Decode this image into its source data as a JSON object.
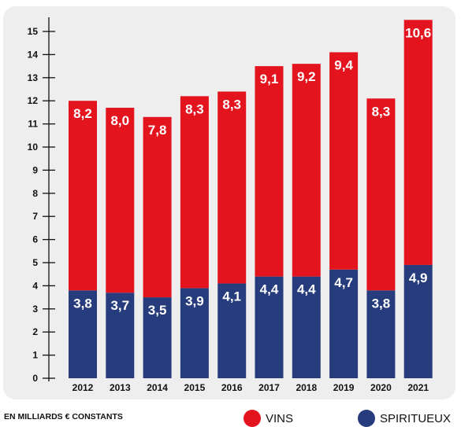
{
  "colors": {
    "vins": "#e3141e",
    "spiritueux": "#273c7c",
    "panel": "#eeeeee",
    "axis": "#111111"
  },
  "note": "EN MILLIARDS € CONSTANTS",
  "legend": [
    {
      "label": "VINS",
      "color": "#e3141e"
    },
    {
      "label": "SPIRITUEUX",
      "color": "#273c7c"
    }
  ],
  "chart_data": {
    "type": "bar",
    "stacked": true,
    "categories": [
      "2012",
      "2013",
      "2014",
      "2015",
      "2016",
      "2017",
      "2018",
      "2019",
      "2020",
      "2021"
    ],
    "series": [
      {
        "name": "SPIRITUEUX",
        "values": [
          3.8,
          3.7,
          3.5,
          3.9,
          4.1,
          4.4,
          4.4,
          4.7,
          3.8,
          4.9
        ],
        "labels": [
          "3,8",
          "3,7",
          "3,5",
          "3,9",
          "4,1",
          "4,4",
          "4,4",
          "4,7",
          "3,8",
          "4,9"
        ]
      },
      {
        "name": "VINS",
        "values": [
          8.2,
          8.0,
          7.8,
          8.3,
          8.3,
          9.1,
          9.2,
          9.4,
          8.3,
          10.6
        ],
        "labels": [
          "8,2",
          "8,0",
          "7,8",
          "8,3",
          "8,3",
          "9,1",
          "9,2",
          "9,4",
          "8,3",
          "10,6"
        ]
      }
    ],
    "ylim": [
      0,
      15
    ],
    "yticks": [
      "0",
      "1",
      "2",
      "3",
      "4",
      "5",
      "6",
      "7",
      "8",
      "9",
      "10",
      "11",
      "12",
      "13",
      "14",
      "15"
    ],
    "xlabel": "",
    "ylabel": "",
    "grid": false,
    "legend_position": "bottom"
  }
}
